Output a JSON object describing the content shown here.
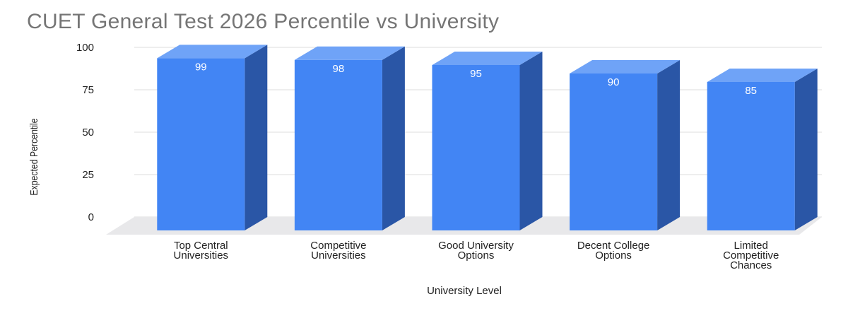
{
  "chart_data": {
    "type": "bar",
    "title": "CUET General Test 2026 Percentile vs University",
    "xlabel": "University Level",
    "ylabel": "Expected Percentile",
    "categories": [
      [
        "Top Central",
        "Universities"
      ],
      [
        "Competitive",
        "Universities"
      ],
      [
        "Good University",
        "Options"
      ],
      [
        "Decent College",
        "Options"
      ],
      [
        "Limited",
        "Competitive",
        "Chances"
      ]
    ],
    "values": [
      99,
      98,
      95,
      90,
      85
    ],
    "ylim": [
      0,
      100
    ],
    "yticks": [
      0,
      25,
      50,
      75,
      100
    ],
    "grid": true,
    "style": "3d",
    "colors": {
      "front": "#4285f4",
      "side": "#2a56a6",
      "top": "#6fa3f7",
      "floor": "#e8e8ea"
    }
  }
}
